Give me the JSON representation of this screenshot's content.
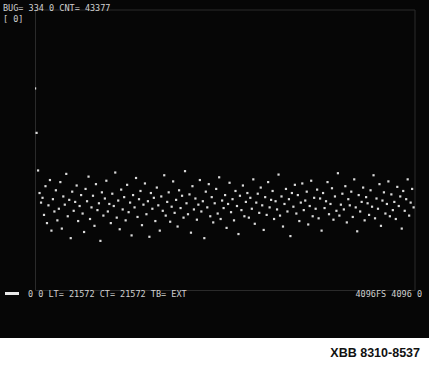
{
  "chart_data": {
    "type": "scatter",
    "annotations": [
      "BUG= 334 0 CNT= 43377",
      "[ 0]",
      "0 0 LT= 21572 CT= 21572 TB= EXT",
      "4096FS 4096 0"
    ],
    "caption": "XBB 8310-8537",
    "xlim": [
      0,
      4096
    ],
    "ylim": [
      0,
      4096
    ],
    "tick_labels": false,
    "grid": false,
    "color": "#dadada",
    "marker": "dot",
    "x": [
      0,
      16,
      32,
      48,
      64,
      80,
      96,
      112,
      128,
      144,
      160,
      176,
      192,
      208,
      224,
      240,
      256,
      272,
      288,
      304,
      320,
      336,
      352,
      368,
      384,
      400,
      416,
      432,
      448,
      464,
      480,
      496,
      512,
      528,
      544,
      560,
      576,
      592,
      608,
      624,
      640,
      656,
      672,
      688,
      704,
      720,
      736,
      752,
      768,
      784,
      800,
      816,
      832,
      848,
      864,
      880,
      896,
      912,
      928,
      944,
      960,
      976,
      992,
      1008,
      1024,
      1040,
      1056,
      1072,
      1088,
      1104,
      1120,
      1136,
      1152,
      1168,
      1184,
      1200,
      1216,
      1232,
      1248,
      1264,
      1280,
      1296,
      1312,
      1328,
      1344,
      1360,
      1376,
      1392,
      1408,
      1424,
      1440,
      1456,
      1472,
      1488,
      1504,
      1520,
      1536,
      1552,
      1568,
      1584,
      1600,
      1616,
      1632,
      1648,
      1664,
      1680,
      1696,
      1712,
      1728,
      1744,
      1760,
      1776,
      1792,
      1808,
      1824,
      1840,
      1856,
      1872,
      1888,
      1904,
      1920,
      1936,
      1952,
      1968,
      1984,
      2000,
      2016,
      2032,
      2048,
      2064,
      2080,
      2096,
      2112,
      2128,
      2144,
      2160,
      2176,
      2192,
      2208,
      2224,
      2240,
      2256,
      2272,
      2288,
      2304,
      2320,
      2336,
      2352,
      2368,
      2384,
      2400,
      2416,
      2432,
      2448,
      2464,
      2480,
      2496,
      2512,
      2528,
      2544,
      2560,
      2576,
      2592,
      2608,
      2624,
      2640,
      2656,
      2672,
      2688,
      2704,
      2720,
      2736,
      2752,
      2768,
      2784,
      2800,
      2816,
      2832,
      2848,
      2864,
      2880,
      2896,
      2912,
      2928,
      2944,
      2960,
      2976,
      2992,
      3008,
      3024,
      3040,
      3056,
      3072,
      3088,
      3104,
      3120,
      3136,
      3152,
      3168,
      3184,
      3200,
      3216,
      3232,
      3248,
      3264,
      3280,
      3296,
      3312,
      3328,
      3344,
      3360,
      3376,
      3392,
      3408,
      3424,
      3440,
      3456,
      3472,
      3488,
      3504,
      3520,
      3536,
      3552,
      3568,
      3584,
      3600,
      3616,
      3632,
      3648,
      3664,
      3680,
      3696,
      3712,
      3728,
      3744,
      3760,
      3776,
      3792,
      3808,
      3824,
      3840,
      3856,
      3872,
      3888,
      3904,
      3920,
      3936,
      3952,
      3968,
      3984,
      4000,
      4016,
      4032,
      4048,
      4064,
      4080
    ],
    "values": [
      2950,
      2300,
      1750,
      1420,
      1280,
      1350,
      1100,
      1520,
      980,
      1240,
      1610,
      870,
      1330,
      1150,
      1460,
      1020,
      1190,
      1580,
      900,
      1370,
      1250,
      1700,
      1080,
      1320,
      760,
      1440,
      1160,
      1290,
      1530,
      1010,
      1230,
      1390,
      1120,
      850,
      1480,
      1300,
      1660,
      1040,
      1210,
      1380,
      940,
      1550,
      1170,
      1270,
      720,
      1430,
      1090,
      1340,
      1600,
      1150,
      1260,
      980,
      1410,
      1230,
      1720,
      1060,
      1310,
      890,
      1470,
      1180,
      1360,
      1020,
      1540,
      1140,
      1280,
      800,
      1390,
      1210,
      1640,
      1070,
      1330,
      1450,
      950,
      1250,
      1560,
      1110,
      1300,
      780,
      1420,
      1190,
      1350,
      1010,
      1500,
      1240,
      870,
      1370,
      1160,
      1680,
      1090,
      1290,
      1430,
      1000,
      1220,
      1590,
      1130,
      1320,
      930,
      1460,
      1200,
      1380,
      1060,
      1740,
      1270,
      1110,
      1400,
      840,
      1520,
      1180,
      1340,
      1030,
      1250,
      1610,
      1150,
      1300,
      760,
      1440,
      1210,
      1550,
      1080,
      1360,
      990,
      1270,
      1480,
      1120,
      1650,
      1040,
      1310,
      1200,
      1390,
      910,
      1260,
      1570,
      1140,
      1330,
      1020,
      1450,
      1230,
      820,
      1380,
      1170,
      1530,
      1080,
      1290,
      1420,
      1060,
      1350,
      1190,
      1620,
      970,
      1280,
      1410,
      1130,
      1500,
      1240,
      880,
      1360,
      1100,
      1580,
      1210,
      1320,
      1450,
      1040,
      1300,
      1180,
      1690,
      1090,
      1370,
      930,
      1260,
      1480,
      1150,
      1330,
      790,
      1420,
      1220,
      1540,
      1120,
      1390,
      1010,
      1280,
      1560,
      1170,
      1310,
      1440,
      960,
      1230,
      1600,
      1080,
      1350,
      1190,
      1470,
      1050,
      1340,
      870,
      1420,
      1200,
      1300,
      1580,
      1110,
      1260,
      1490,
      1030,
      1370,
      1160,
      1710,
      1090,
      1250,
      1410,
      1180,
      1520,
      990,
      1330,
      1240,
      1440,
      1070,
      1620,
      1210,
      860,
      1390,
      1150,
      1290,
      1500,
      1020,
      1360,
      1270,
      1100,
      1460,
      1220,
      1680,
      1050,
      1340,
      1190,
      1550,
      940,
      1310,
      1430,
      1120,
      1260,
      1590,
      1080,
      1400,
      1170,
      1290,
      1040,
      1510,
      1230,
      1370,
      900,
      1450,
      1160,
      1330,
      1620,
      1090,
      1280,
      1480,
      1210
    ]
  }
}
